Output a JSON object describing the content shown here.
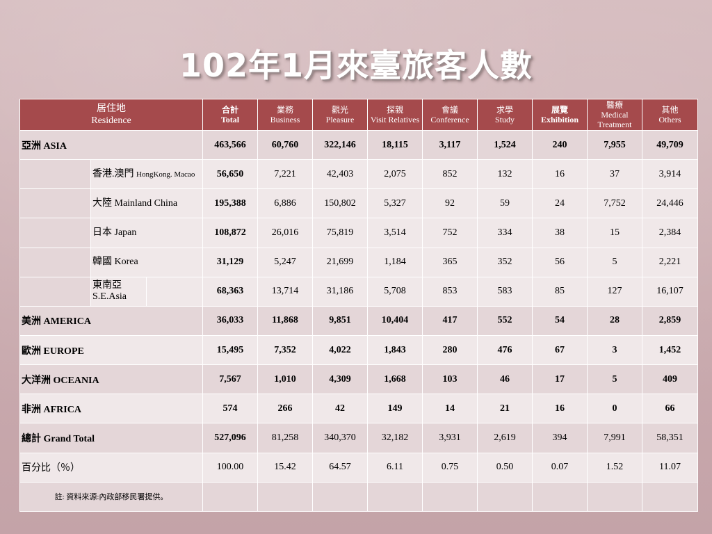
{
  "title": "102年1月來臺旅客人數",
  "header": {
    "residence_zh": "居住地",
    "residence_en": "Residence",
    "cols": [
      {
        "zh": "合計",
        "en": "Total"
      },
      {
        "zh": "業務",
        "en": "Business"
      },
      {
        "zh": "觀光",
        "en": "Pleasure"
      },
      {
        "zh": "探親",
        "en": "Visit Relatives"
      },
      {
        "zh": "會議",
        "en": "Conference"
      },
      {
        "zh": "求學",
        "en": "Study"
      },
      {
        "zh": "展覽",
        "en": "Exhibition"
      },
      {
        "zh": "醫療",
        "en": "Medical Treatment"
      },
      {
        "zh": "其他",
        "en": "Others"
      }
    ]
  },
  "rows": {
    "asia": {
      "label": "亞洲  ASIA",
      "values": [
        "463,566",
        "60,760",
        "322,146",
        "18,115",
        "3,117",
        "1,524",
        "240",
        "7,955",
        "49,709"
      ]
    },
    "hk": {
      "label": "香港.澳門",
      "label_en": "HongKong. Macao",
      "values": [
        "56,650",
        "7,221",
        "42,403",
        "2,075",
        "852",
        "132",
        "16",
        "37",
        "3,914"
      ]
    },
    "china": {
      "label": "大陸 Mainland China",
      "values": [
        "195,388",
        "6,886",
        "150,802",
        "5,327",
        "92",
        "59",
        "24",
        "7,752",
        "24,446"
      ]
    },
    "japan": {
      "label": "日本 Japan",
      "values": [
        "108,872",
        "26,016",
        "75,819",
        "3,514",
        "752",
        "334",
        "38",
        "15",
        "2,384"
      ]
    },
    "korea": {
      "label": "韓國 Korea",
      "values": [
        "31,129",
        "5,247",
        "21,699",
        "1,184",
        "365",
        "352",
        "56",
        "5",
        "2,221"
      ]
    },
    "sea": {
      "label": "東南亞",
      "label_en": "S.E.Asia",
      "values": [
        "68,363",
        "13,714",
        "31,186",
        "5,708",
        "853",
        "583",
        "85",
        "127",
        "16,107"
      ]
    },
    "america": {
      "label": "美洲  AMERICA",
      "values": [
        "36,033",
        "11,868",
        "9,851",
        "10,404",
        "417",
        "552",
        "54",
        "28",
        "2,859"
      ]
    },
    "europe": {
      "label": "歐洲  EUROPE",
      "values": [
        "15,495",
        "7,352",
        "4,022",
        "1,843",
        "280",
        "476",
        "67",
        "3",
        "1,452"
      ]
    },
    "oceania": {
      "label": "大洋洲  OCEANIA",
      "values": [
        "7,567",
        "1,010",
        "4,309",
        "1,668",
        "103",
        "46",
        "17",
        "5",
        "409"
      ]
    },
    "africa": {
      "label": "非洲  AFRICA",
      "values": [
        "574",
        "266",
        "42",
        "149",
        "14",
        "21",
        "16",
        "0",
        "66"
      ]
    },
    "total": {
      "label": "總計 Grand Total",
      "values": [
        "527,096",
        "81,258",
        "340,370",
        "32,182",
        "3,931",
        "2,619",
        "394",
        "7,991",
        "58,351"
      ]
    },
    "pct": {
      "label": "百分比（％）",
      "values": [
        "100.00",
        "15.42",
        "64.57",
        "6.11",
        "0.75",
        "0.50",
        "0.07",
        "1.52",
        "11.07"
      ]
    }
  },
  "note": "註: 資料來源:內政部移民署提供。"
}
